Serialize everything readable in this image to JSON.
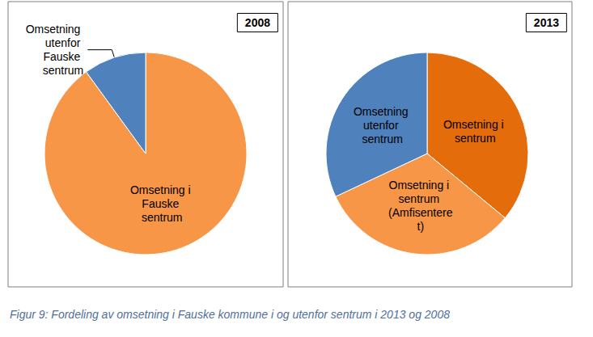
{
  "chart_data": [
    {
      "type": "pie",
      "title": "2008",
      "categories": [
        "Omsetning i Fauske sentrum",
        "Omsetning utenfor Fauske sentrum"
      ],
      "values": [
        90,
        10
      ],
      "colors": [
        "#F79646",
        "#4F81BD"
      ]
    },
    {
      "type": "pie",
      "title": "2013",
      "categories": [
        "Omsetning i sentrum",
        "Omsetning i sentrum (Amfisenteret)",
        "Omsetning utenfor sentrum"
      ],
      "values": [
        36,
        32,
        32
      ],
      "colors": [
        "#E46C0A",
        "#F79646",
        "#4F81BD"
      ]
    }
  ],
  "caption": "Figur 9: Fordeling av omsetning i Fauske kommune i og utenfor sentrum i 2013 og 2008"
}
